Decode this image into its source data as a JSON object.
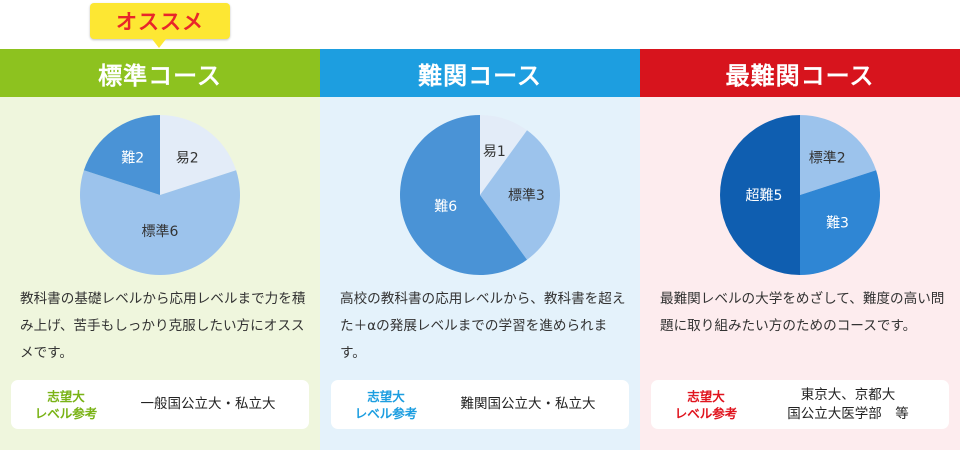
{
  "badge": {
    "text": "オススメ",
    "bg": "#fde733",
    "color": "#e8262a"
  },
  "courses": [
    {
      "title": "標準コース",
      "header_color": "#8dc21f",
      "body_bg": "#eff6dd",
      "accent": "#7ab317",
      "slices": [
        {
          "label": "易2",
          "value": 2,
          "color": "#e3ecf8",
          "text_color": "#333333"
        },
        {
          "label": "標準6",
          "value": 6,
          "color": "#9cc3ec",
          "text_color": "#333333"
        },
        {
          "label": "難2",
          "value": 2,
          "color": "#4a93d6",
          "text_color": "#ffffff"
        }
      ],
      "description": "教科書の基礎レベルから応用レベルまで力を積み上げ、苦手もしっかり克服したい方にオススメです。",
      "ref_label_line1": "志望大",
      "ref_label_line2": "レベル参考",
      "ref_value_line1": "一般国公立大・私立大",
      "ref_value_line2": ""
    },
    {
      "title": "難関コース",
      "header_color": "#1d9ee0",
      "body_bg": "#e4f2fb",
      "accent": "#1d9ee0",
      "slices": [
        {
          "label": "易1",
          "value": 1,
          "color": "#e3ecf8",
          "text_color": "#333333"
        },
        {
          "label": "標準3",
          "value": 3,
          "color": "#9cc3ec",
          "text_color": "#333333"
        },
        {
          "label": "難6",
          "value": 6,
          "color": "#4a93d6",
          "text_color": "#ffffff"
        }
      ],
      "description": "高校の教科書の応用レベルから、教科書を超えた＋αの発展レベルまでの学習を進められます。",
      "ref_label_line1": "志望大",
      "ref_label_line2": "レベル参考",
      "ref_value_line1": "難関国公立大・私立大",
      "ref_value_line2": ""
    },
    {
      "title": "最難関コース",
      "header_color": "#d7141d",
      "body_bg": "#fdecee",
      "accent": "#e0151f",
      "slices": [
        {
          "label": "標準2",
          "value": 2,
          "color": "#9cc3ec",
          "text_color": "#333333"
        },
        {
          "label": "難3",
          "value": 3,
          "color": "#2f86d4",
          "text_color": "#ffffff"
        },
        {
          "label": "超難5",
          "value": 5,
          "color": "#0f5eb0",
          "text_color": "#ffffff"
        }
      ],
      "description": "最難関レベルの大学をめざして、難度の高い問題に取り組みたい方のためのコースです。",
      "ref_label_line1": "志望大",
      "ref_label_line2": "レベル参考",
      "ref_value_line1": "東京大、京都大",
      "ref_value_line2": "国公立大医学部　等"
    }
  ]
}
